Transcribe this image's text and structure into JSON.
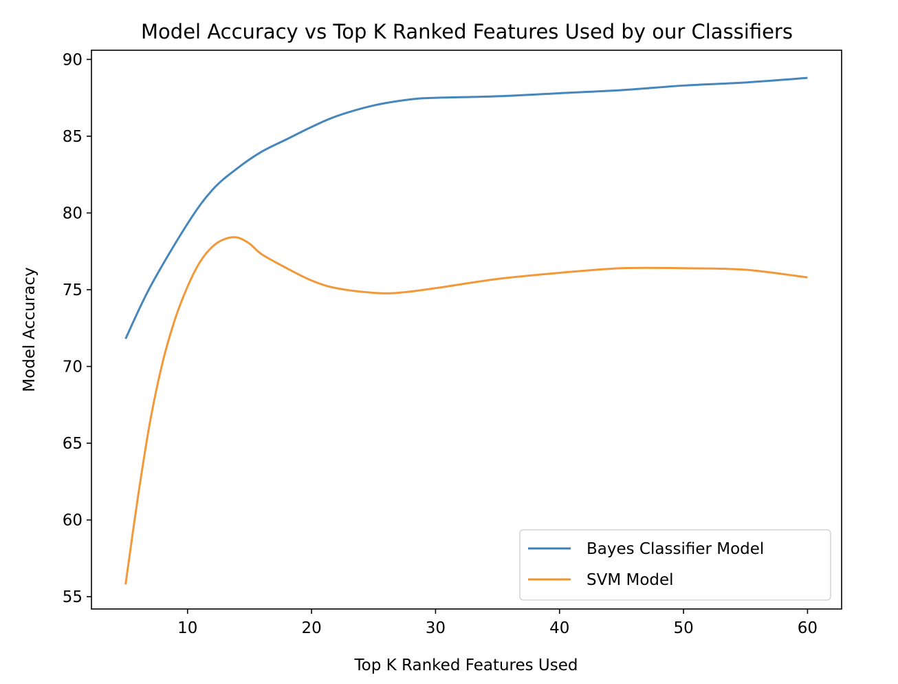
{
  "chart_data": {
    "type": "line",
    "title": "Model Accuracy vs Top K Ranked Features Used by our Classifiers",
    "xlabel": "Top K Ranked Features Used",
    "ylabel": "Model Accuracy",
    "xlim": [
      2.25,
      62.75
    ],
    "ylim": [
      54.2,
      90.6
    ],
    "xticks": [
      10,
      20,
      30,
      40,
      50,
      60
    ],
    "yticks": [
      55,
      60,
      65,
      70,
      75,
      80,
      85,
      90
    ],
    "grid": false,
    "legend_position": "lower-right",
    "series": [
      {
        "name": "Bayes Classifier Model",
        "color": "#3b7fb8",
        "x": [
          5,
          7,
          10,
          12,
          14,
          16,
          18,
          20,
          22,
          25,
          28,
          30,
          35,
          40,
          45,
          50,
          55,
          60
        ],
        "y": [
          71.8,
          75.2,
          79.3,
          81.5,
          82.9,
          84.0,
          84.8,
          85.6,
          86.3,
          87.0,
          87.4,
          87.5,
          87.6,
          87.8,
          88.0,
          88.3,
          88.5,
          88.8
        ]
      },
      {
        "name": "SVM Model",
        "color": "#f2922d",
        "x": [
          5,
          6,
          7,
          8,
          9,
          10,
          11,
          12,
          13,
          14,
          15,
          16,
          18,
          20,
          22,
          25,
          27,
          30,
          35,
          40,
          45,
          50,
          55,
          60
        ],
        "y": [
          55.8,
          61.5,
          66.5,
          70.3,
          73.1,
          75.2,
          76.8,
          77.8,
          78.3,
          78.4,
          78.0,
          77.3,
          76.4,
          75.6,
          75.1,
          74.8,
          74.8,
          75.1,
          75.7,
          76.1,
          76.4,
          76.4,
          76.3,
          75.8
        ]
      }
    ]
  }
}
